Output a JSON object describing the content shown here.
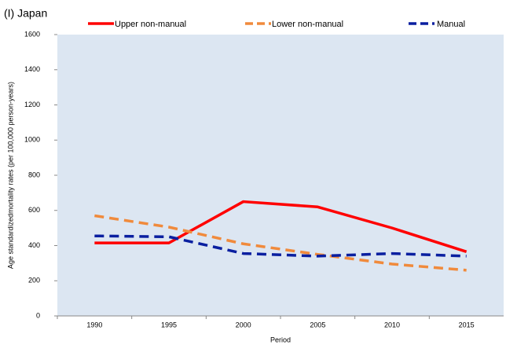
{
  "chart_data": {
    "type": "line",
    "title": "(I) Japan",
    "x_label": "Period",
    "y_label": "Age standardizedmortality rates (per 100,000 person-years)",
    "categories": [
      "1990",
      "1995",
      "2000",
      "2005",
      "2010",
      "2015"
    ],
    "series": [
      {
        "name": "Upper non-manual",
        "color": "#ff0000",
        "dashed": false,
        "values": [
          415,
          415,
          650,
          620,
          500,
          365
        ]
      },
      {
        "name": "Lower non-manual",
        "color": "#f08a3c",
        "dashed": true,
        "values": [
          570,
          505,
          410,
          350,
          295,
          260
        ]
      },
      {
        "name": "Manual",
        "color": "#0a1fa0",
        "dashed": true,
        "values": [
          455,
          450,
          355,
          340,
          355,
          340
        ]
      }
    ],
    "ylim": [
      0,
      1600
    ],
    "yticks": [
      0,
      200,
      400,
      600,
      800,
      1000,
      1200,
      1400,
      1600
    ],
    "legend_position": "top",
    "plot_background": "#dce6f2"
  }
}
